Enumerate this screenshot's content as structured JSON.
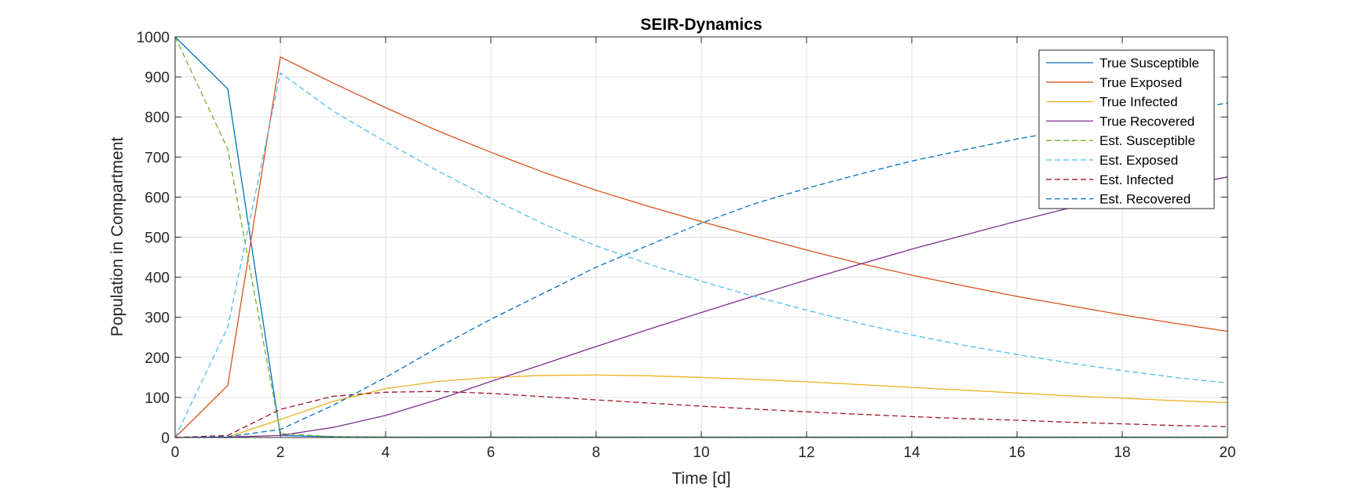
{
  "chart_data": {
    "type": "line",
    "title": "SEIR-Dynamics",
    "xlabel": "Time [d]",
    "ylabel": "Population in Compartment",
    "xlim": [
      0,
      20
    ],
    "ylim": [
      0,
      1000
    ],
    "xticks": [
      0,
      2,
      4,
      6,
      8,
      10,
      12,
      14,
      16,
      18,
      20
    ],
    "yticks": [
      0,
      100,
      200,
      300,
      400,
      500,
      600,
      700,
      800,
      900,
      1000
    ],
    "grid": true,
    "legend_position": "top-right",
    "x": [
      0,
      1,
      2,
      3,
      4,
      5,
      6,
      7,
      8,
      9,
      10,
      11,
      12,
      13,
      14,
      15,
      16,
      17,
      18,
      19,
      20
    ],
    "series": [
      {
        "name": "True Susceptible",
        "color": "#0072BD",
        "style": "solid",
        "values": [
          1000,
          870,
          5,
          2,
          1,
          1,
          1,
          1,
          1,
          1,
          1,
          1,
          1,
          1,
          1,
          1,
          1,
          1,
          1,
          1,
          1
        ]
      },
      {
        "name": "True Exposed",
        "color": "#D95319",
        "style": "solid",
        "values": [
          0,
          130,
          950,
          885,
          823,
          765,
          712,
          662,
          617,
          577,
          539,
          503,
          468,
          435,
          405,
          378,
          352,
          329,
          306,
          285,
          265
        ]
      },
      {
        "name": "True Infected",
        "color": "#EDB120",
        "style": "solid",
        "values": [
          0,
          1,
          45,
          90,
          122,
          140,
          150,
          155,
          156,
          154,
          150,
          145,
          139,
          132,
          125,
          118,
          111,
          104,
          98,
          92,
          87
        ]
      },
      {
        "name": "True Recovered",
        "color": "#7E2F8E",
        "style": "solid",
        "values": [
          0,
          1,
          5,
          25,
          55,
          95,
          140,
          183,
          227,
          270,
          312,
          353,
          393,
          432,
          470,
          505,
          540,
          573,
          605,
          627,
          650
        ]
      },
      {
        "name": "Est. Susceptible",
        "color": "#77AC30",
        "style": "dashed",
        "values": [
          1000,
          720,
          10,
          2,
          1,
          1,
          1,
          1,
          1,
          1,
          1,
          1,
          1,
          1,
          1,
          1,
          1,
          1,
          1,
          1,
          1
        ]
      },
      {
        "name": "Est. Exposed",
        "color": "#4DBEEE",
        "style": "dashed",
        "values": [
          0,
          275,
          910,
          815,
          738,
          665,
          597,
          533,
          478,
          433,
          390,
          352,
          318,
          285,
          256,
          230,
          207,
          186,
          167,
          150,
          136
        ]
      },
      {
        "name": "Est. Infected",
        "color": "#A2142F",
        "style": "dashed",
        "values": [
          0,
          5,
          70,
          103,
          113,
          115,
          110,
          102,
          94,
          86,
          78,
          71,
          64,
          58,
          52,
          47,
          43,
          38,
          34,
          30,
          27
        ]
      },
      {
        "name": "Est. Recovered",
        "color": "#0072BD",
        "style": "dashed",
        "values": [
          0,
          2,
          20,
          80,
          150,
          225,
          295,
          360,
          425,
          480,
          535,
          583,
          622,
          657,
          690,
          718,
          745,
          768,
          790,
          812,
          835
        ]
      }
    ]
  }
}
